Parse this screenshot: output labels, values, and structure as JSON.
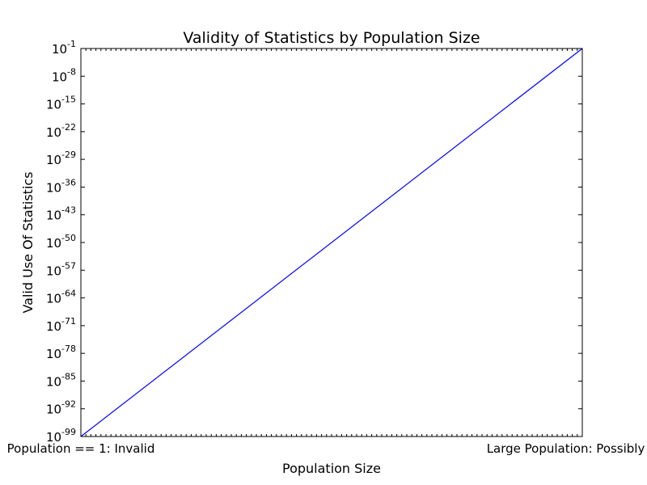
{
  "chart_data": {
    "type": "line",
    "title": "Validity of Statistics by Population Size",
    "xlabel": "Population Size",
    "ylabel": "Valid Use Of Statistics",
    "x_tick_labels": [
      "Population == 1: Invalid",
      "Large Population: Possibly Valid"
    ],
    "y_scale": "log",
    "y_tick_base": "10",
    "y_tick_exponents": [
      "-99",
      "-92",
      "-85",
      "-78",
      "-71",
      "-64",
      "-57",
      "-50",
      "-43",
      "-36",
      "-29",
      "-22",
      "-15",
      "-8",
      "-1"
    ],
    "ylim": [
      "1e-99",
      "1e-1"
    ],
    "grid": false,
    "series": [
      {
        "x": [
          "Population == 1: Invalid",
          "Large Population: Possibly Valid"
        ],
        "y": [
          "1e-99",
          "1e-1"
        ],
        "color": "#0000ff"
      }
    ],
    "colors": {
      "line": "#0000ff",
      "axes": "#000000",
      "background": "#ffffff"
    }
  }
}
